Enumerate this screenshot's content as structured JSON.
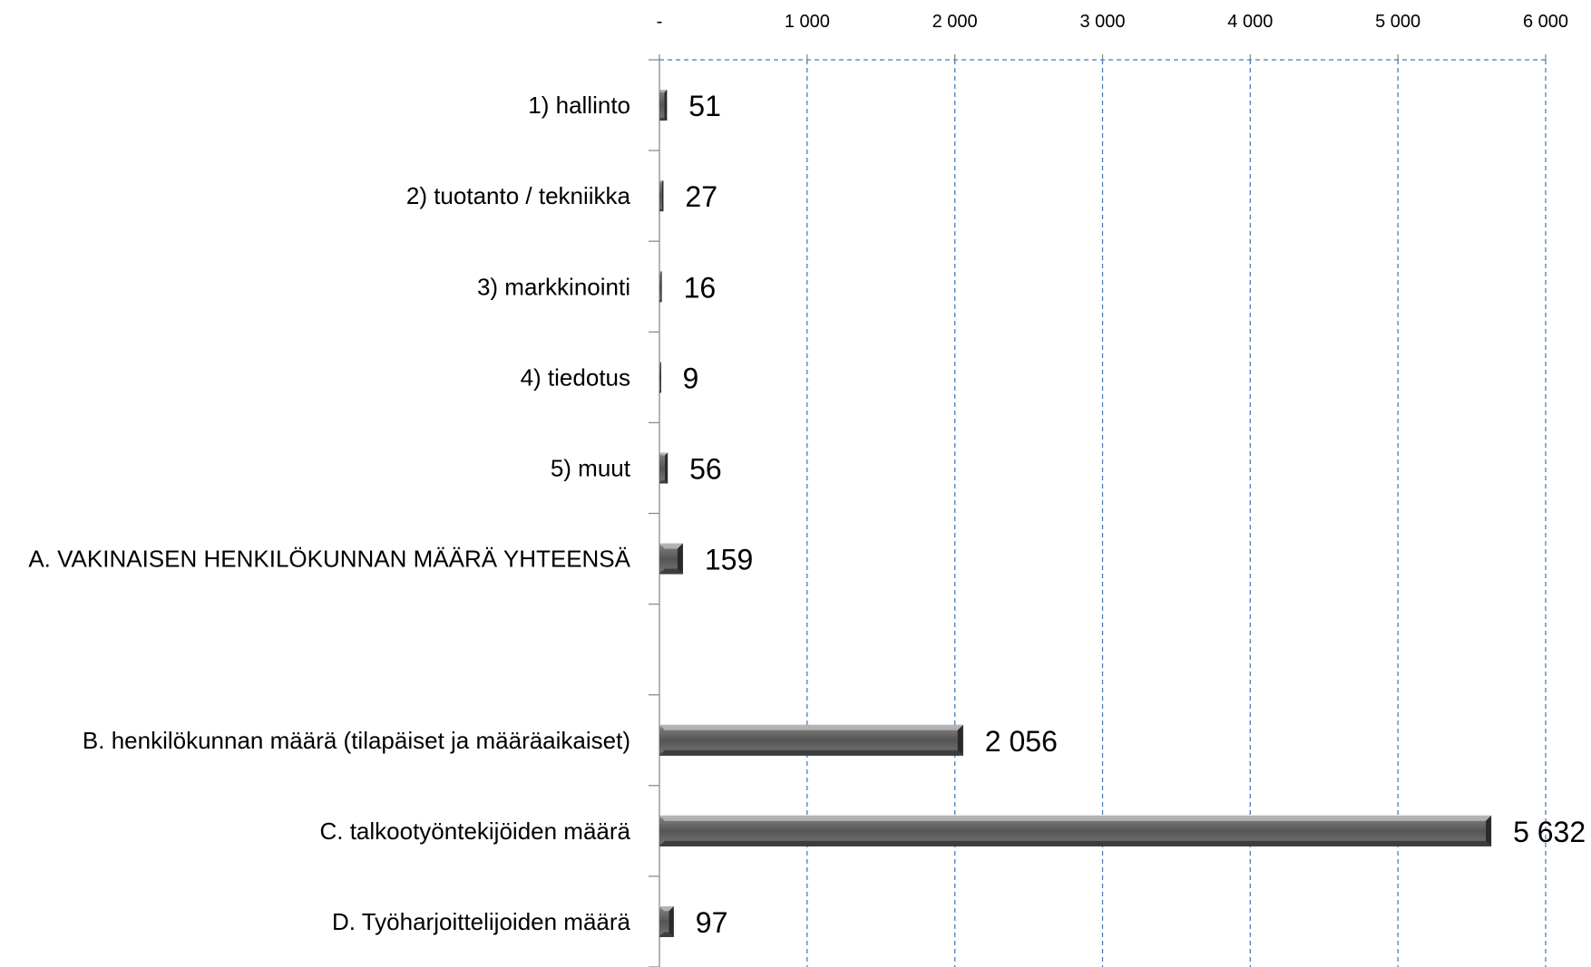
{
  "chart_data": {
    "type": "bar",
    "orientation": "horizontal",
    "title": "",
    "xlabel": "",
    "ylabel": "",
    "categories": [
      "1) hallinto",
      "2) tuotanto / tekniikka",
      "3) markkinointi",
      "4) tiedotus",
      "5) muut",
      "A. VAKINAISEN HENKILÖKUNNAN MÄÄRÄ YHTEENSÄ",
      "",
      "B. henkilökunnan määrä (tilapäiset ja määräaikaiset)",
      "C. talkootyöntekijöiden määrä",
      "D. Työharjoittelijoiden määrä"
    ],
    "values": [
      51,
      27,
      16,
      9,
      56,
      159,
      null,
      2056,
      5632,
      97
    ],
    "value_labels": [
      "51",
      "27",
      "16",
      "9",
      "56",
      "159",
      "",
      "2 056",
      "5 632",
      "97"
    ],
    "xlim": [
      0,
      6000
    ],
    "ticks": [
      0,
      1000,
      2000,
      3000,
      4000,
      5000,
      6000
    ],
    "tick_labels": [
      "-",
      "1 000",
      "2 000",
      "3 000",
      "4 000",
      "5 000",
      "6 000"
    ],
    "axis_position": "top",
    "grid": "vertical dashed",
    "legend": "none",
    "colors": {
      "bar": "#6b6b6b",
      "bar_highlight": "#b8b8b8",
      "bar_dark": "#2a2a2a",
      "grid": "#4a7ebb",
      "axis": "#8c8c8c"
    }
  }
}
